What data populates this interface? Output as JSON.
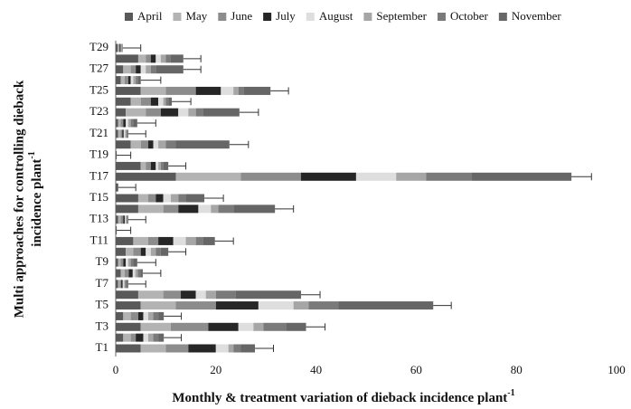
{
  "chart_data": {
    "type": "stacked_barh",
    "x_label": "Monthly & treatment variation of dieback incidence  plant",
    "x_label_sup": "-1",
    "y_label": [
      "Multi approaches for controlling dieback",
      "incidence  plant"
    ],
    "y_label_sup": "-1",
    "categories": [
      "T1",
      null,
      "T3",
      null,
      "T5",
      null,
      "T7",
      null,
      "T9",
      null,
      "T11",
      null,
      "T13",
      null,
      "T15",
      null,
      "T17",
      null,
      "T19",
      null,
      "T21",
      null,
      "T23",
      null,
      "T25",
      null,
      "T27",
      null,
      "T29"
    ],
    "series": [
      {
        "name": "April",
        "color": "#595959",
        "values": [
          5,
          1.5,
          5,
          1.5,
          5,
          4.5,
          0.5,
          1,
          0.5,
          2,
          3.5,
          0.2,
          0.5,
          4.5,
          4.5,
          0.5,
          12,
          5,
          0.2,
          3,
          0.5,
          0.5,
          2,
          3,
          5,
          1,
          1.5,
          4.5,
          0.4
        ]
      },
      {
        "name": "May",
        "color": "#b3b3b3",
        "values": [
          5,
          1.5,
          6,
          1.5,
          7,
          5,
          0.3,
          0.8,
          0.5,
          1.5,
          3,
          0,
          0.5,
          5,
          2,
          0,
          13,
          1,
          0,
          2,
          0.5,
          0.5,
          4,
          2,
          5,
          0.8,
          1.5,
          1.5,
          0.2
        ]
      },
      {
        "name": "June",
        "color": "#8c8c8c",
        "values": [
          4.5,
          1,
          7.5,
          1.5,
          8,
          3.5,
          0.3,
          0.8,
          0.5,
          1.5,
          2,
          0,
          0.5,
          3,
          1.5,
          0,
          12,
          1,
          0,
          1.5,
          0.3,
          0.5,
          3,
          2,
          6,
          0.7,
          1,
          1,
          0.2
        ]
      },
      {
        "name": "July",
        "color": "#262626",
        "values": [
          5.5,
          1.5,
          6,
          1,
          8.5,
          3,
          0.3,
          0.8,
          0.5,
          1,
          3,
          0,
          0.3,
          4,
          1.5,
          0,
          11,
          1,
          0,
          1,
          0.3,
          0.5,
          3.5,
          1.5,
          5,
          0.5,
          1,
          1,
          0.2
        ]
      },
      {
        "name": "August",
        "color": "#dedede",
        "values": [
          2.5,
          1,
          3,
          1,
          7,
          2,
          0.3,
          0.5,
          0.5,
          1,
          2.5,
          0,
          0.2,
          2.5,
          1.5,
          0,
          8,
          0.5,
          0,
          1,
          0.3,
          0.5,
          2,
          1,
          2.5,
          0.5,
          1,
          1,
          0.1
        ]
      },
      {
        "name": "September",
        "color": "#a6a6a6",
        "values": [
          1,
          1,
          2,
          1,
          3,
          2,
          0.2,
          0.5,
          0.5,
          1,
          2,
          0,
          0.2,
          1.5,
          1.5,
          0,
          6,
          0.5,
          0,
          1.5,
          0.2,
          0.5,
          1.5,
          0.5,
          1,
          0.5,
          1,
          1,
          0.1
        ]
      },
      {
        "name": "October",
        "color": "#7a7a7a",
        "values": [
          1.5,
          1,
          4.5,
          1,
          6,
          4,
          0.3,
          0.5,
          0.5,
          1,
          1.5,
          0,
          0.1,
          3,
          1.5,
          0,
          9,
          0.5,
          0,
          2,
          0.2,
          0.5,
          1.5,
          0.5,
          1,
          0.5,
          1,
          1,
          0.1
        ]
      },
      {
        "name": "November",
        "color": "#666666",
        "values": [
          2.8,
          1.1,
          4,
          1.1,
          18.9,
          13,
          0.3,
          0.5,
          0.8,
          1.5,
          2.3,
          0,
          0.2,
          8.3,
          3.7,
          0,
          20,
          1,
          0,
          10.7,
          0.2,
          0.8,
          7.2,
          0.7,
          5.4,
          0.5,
          5.5,
          2.5,
          0.1
        ]
      }
    ],
    "errors": [
      3.7,
      3.5,
      3.8,
      3.5,
      3.6,
      3.8,
      3.5,
      3.6,
      3.7,
      3.5,
      3.7,
      2.8,
      3.5,
      3.7,
      3.8,
      3.5,
      4,
      3.5,
      2.8,
      3.8,
      3.5,
      3.7,
      3.8,
      3.8,
      3.6,
      4,
      3.5,
      3.5,
      3.6
    ],
    "xlim": [
      0,
      100
    ],
    "xticks": [
      0,
      20,
      40,
      60,
      80,
      100
    ],
    "legend": "top"
  }
}
